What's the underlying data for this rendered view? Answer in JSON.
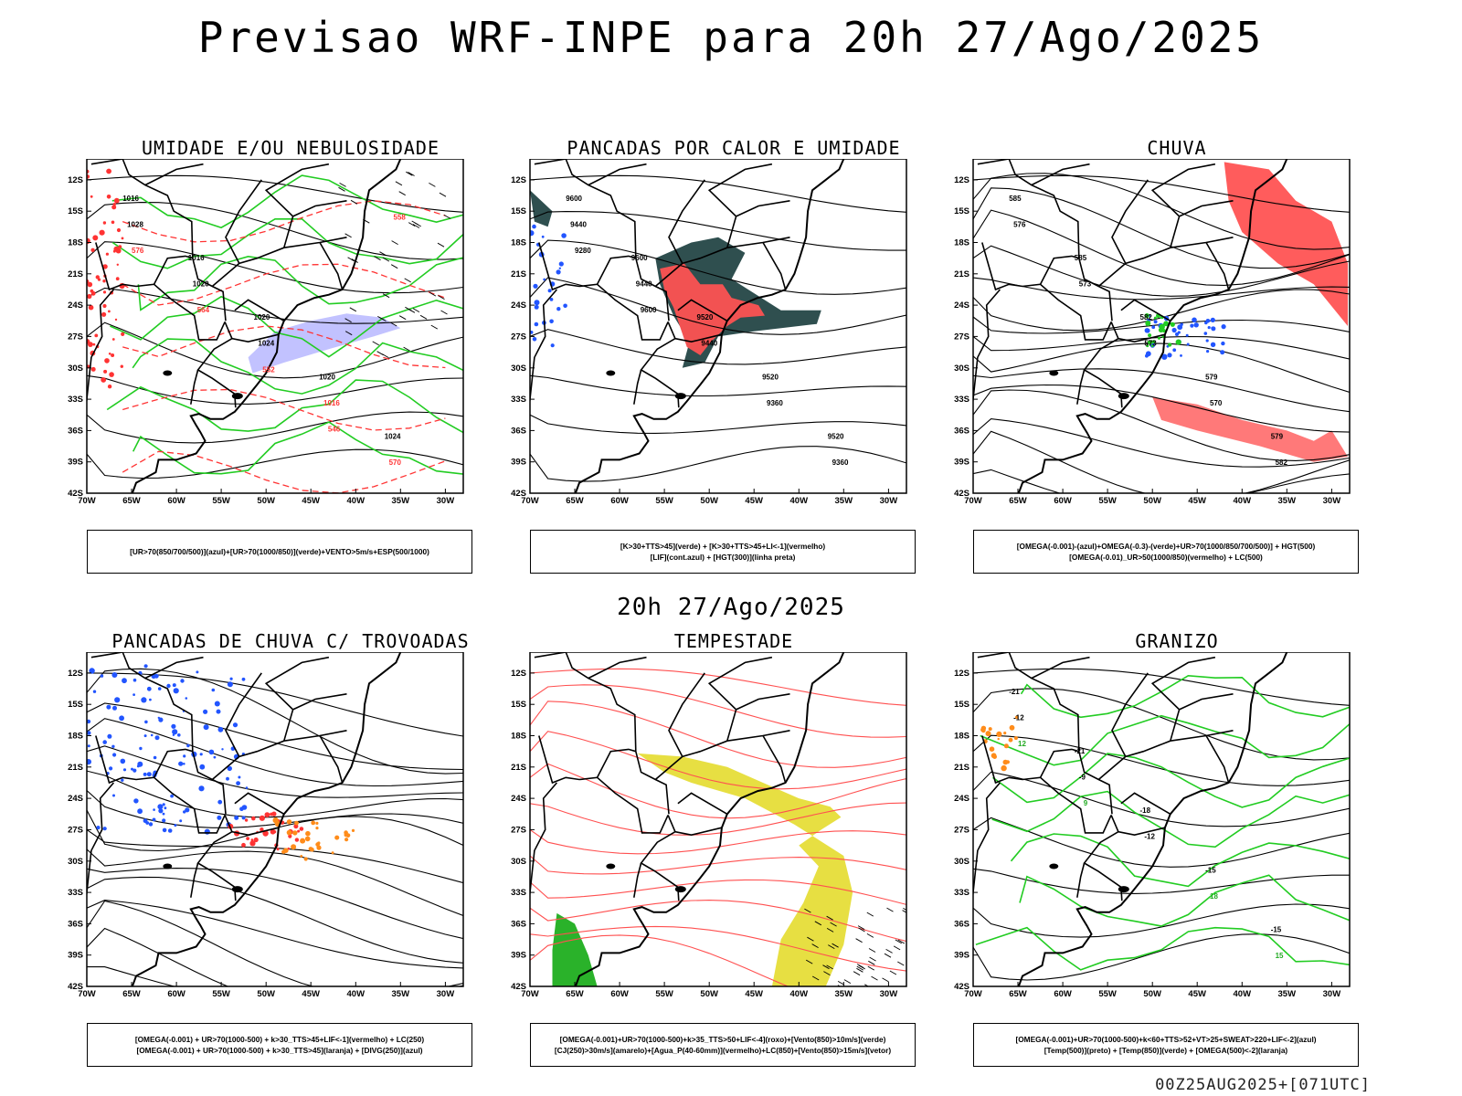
{
  "header": {
    "title": "Previsao WRF-INPE  para 20h 27/Ago/2025",
    "subtitle": "20h 27/Ago/2025",
    "footer": "00Z25AUG2025+[071UTC]"
  },
  "axes": {
    "lat_labels": [
      "12S",
      "15S",
      "18S",
      "21S",
      "24S",
      "27S",
      "30S",
      "33S",
      "36S",
      "39S",
      "42S"
    ],
    "lon_labels": [
      "70W",
      "65W",
      "60W",
      "55W",
      "50W",
      "45W",
      "40W",
      "35W",
      "30W"
    ]
  },
  "panels": [
    {
      "id": "umidade",
      "title": "UMIDADE E/OU NEBULOSIDADE",
      "legend": [
        "[UR>70(850/700/500)](azul)+[UR>70(1000/850)](verde)+VENTO>5m/s+ESP(500/1000)"
      ],
      "contour_labels": [
        "1016",
        "1016",
        "1020",
        "1020",
        "1024",
        "1028",
        "1020",
        "1024",
        "1016",
        "570",
        "576",
        "564",
        "552",
        "546",
        "558"
      ]
    },
    {
      "id": "pancadas-calor",
      "title": "PANCADAS POR CALOR E UMIDADE",
      "legend": [
        "[K>30+TTS>45](verde) + [K>30+TTS>45+LI<-1](vermelho)",
        "[LIF](cont.azul) + [HGT(300)](linha preta)"
      ],
      "contour_labels": [
        "9600",
        "9600",
        "9520",
        "9520",
        "9520",
        "9440",
        "9440",
        "9440",
        "9360",
        "9360",
        "9280",
        "9600"
      ]
    },
    {
      "id": "chuva",
      "title": "CHUVA",
      "legend": [
        "[OMEGA(-0.001)-(azul)+OMEGA(-0.3)-(verde)+UR>70(1000/850/700/500)] + HGT(500)",
        "[OMEGA(-0.01)_UR>50(1000/850)(vermelho) + LC(500)"
      ],
      "contour_labels": [
        "585",
        "585",
        "582",
        "579",
        "579",
        "576",
        "573",
        "573",
        "570",
        "582"
      ]
    },
    {
      "id": "trovoadas",
      "title": "PANCADAS DE CHUVA C/ TROVOADAS",
      "legend": [
        "[OMEGA(-0.001) + UR>70(1000-500) + k>30_TTS>45+LIF<-1](vermelho) + LC(250)",
        "[OMEGA(-0.001) + UR>70(1000-500) + k>30_TTS>45](laranja) + [DIVG(250)](azul)"
      ],
      "contour_labels": []
    },
    {
      "id": "tempestade",
      "title": "TEMPESTADE",
      "legend": [
        "[OMEGA(-0.001)+UR>70(1000-500)+k>35_TTS>50+LIF<-4](roxo)+[Vento(850)>10m/s](verde)",
        "[CJ(250)>30m/s](amarelo)+[Agua_P(40-60mm)](vermelho)+LC(850)+[Vento(850)>15m/s](vetor)"
      ],
      "contour_labels": []
    },
    {
      "id": "granizo",
      "title": "GRANIZO",
      "legend": [
        "[OMEGA(-0.001)+UR>70(1000-500)+k<60+TTS>52+VT>25+SWEAT>220+LIF<-2](azul)",
        "[Temp(500)](preto) + [Temp(850)](verde) + [OMEGA(500)<-2](laranja)"
      ],
      "contour_labels": [
        "-21",
        "-21",
        "-18",
        "-15",
        "-15",
        "-12",
        "-9",
        "-12",
        "18",
        "15",
        "12",
        "9"
      ]
    }
  ]
}
